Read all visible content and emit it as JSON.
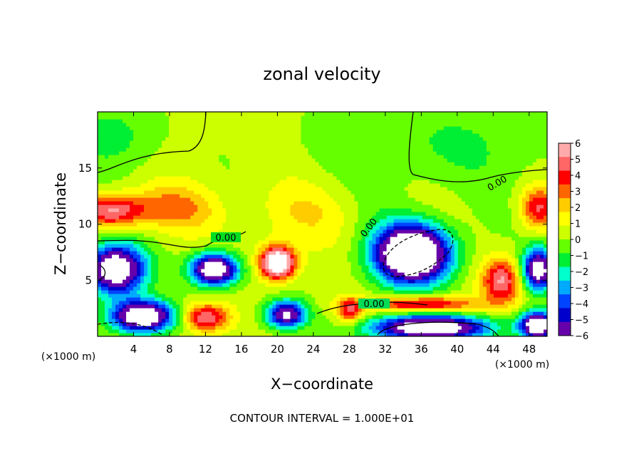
{
  "chart_data": {
    "type": "heatmap",
    "title": "zonal velocity",
    "xlabel": "X−coordinate",
    "ylabel": "Z−coordinate",
    "x_unit": "(×1000 m)",
    "y_unit": "(×1000 m)",
    "note": "CONTOUR INTERVAL = 1.000E+01",
    "xlim": [
      0,
      50
    ],
    "ylim": [
      0,
      20
    ],
    "x_ticks": [
      4,
      8,
      12,
      16,
      20,
      24,
      28,
      32,
      36,
      40,
      44,
      48
    ],
    "y_ticks": [
      5,
      10,
      15
    ],
    "colorbar": {
      "ticks": [
        "6",
        "5",
        "4",
        "3",
        "2",
        "1",
        "0",
        "−1",
        "−2",
        "−3",
        "−4",
        "−5",
        "−6"
      ],
      "colors": [
        "#ffaaaa",
        "#ff6666",
        "#ff0000",
        "#ff6600",
        "#ffcc00",
        "#ffff00",
        "#ccff00",
        "#66ff00",
        "#00ee33",
        "#00ffcc",
        "#00aaff",
        "#0044ff",
        "#0000cc",
        "#6600aa"
      ]
    },
    "contour_labels": [
      "0.00",
      "0.00",
      "0.00",
      "0.00"
    ],
    "background_value": 0.3,
    "features": [
      {
        "x": 2,
        "z": 6.0,
        "value": -9,
        "sx": 3.2,
        "sz": 2.2
      },
      {
        "x": 1.5,
        "z": 11.2,
        "value": 5,
        "sx": 3.5,
        "sz": 1.4
      },
      {
        "x": 8,
        "z": 11.5,
        "value": 2.5,
        "sx": 5,
        "sz": 2
      },
      {
        "x": 13,
        "z": 6.0,
        "value": -9,
        "sx": 2.6,
        "sz": 1.4
      },
      {
        "x": 20,
        "z": 6.6,
        "value": 9,
        "sx": 1.9,
        "sz": 1.4
      },
      {
        "x": 21,
        "z": 2.0,
        "value": -7,
        "sx": 2.2,
        "sz": 1.2
      },
      {
        "x": 12,
        "z": 1.7,
        "value": 5,
        "sx": 2.5,
        "sz": 1.2
      },
      {
        "x": 5,
        "z": 1.8,
        "value": -9,
        "sx": 3.5,
        "sz": 1.4
      },
      {
        "x": 28,
        "z": 2.3,
        "value": 4,
        "sx": 1.4,
        "sz": 1.1
      },
      {
        "x": 35,
        "z": 7.4,
        "value": -11,
        "sx": 4.2,
        "sz": 2.6
      },
      {
        "x": 37,
        "z": 0.8,
        "value": -9,
        "sx": 6.5,
        "sz": 1.1
      },
      {
        "x": 36,
        "z": 2.9,
        "value": 5,
        "sx": 6,
        "sz": 0.7
      },
      {
        "x": 45,
        "z": 5.0,
        "value": 5,
        "sx": 2.2,
        "sz": 2
      },
      {
        "x": 49,
        "z": 6.0,
        "value": -8,
        "sx": 1.8,
        "sz": 1.8
      },
      {
        "x": 49,
        "z": 1.0,
        "value": -9,
        "sx": 2,
        "sz": 1.2
      },
      {
        "x": 49,
        "z": 11.5,
        "value": 4,
        "sx": 2,
        "sz": 1.8
      },
      {
        "x": 38,
        "z": 17,
        "value": -1.2,
        "sx": 14,
        "sz": 4
      },
      {
        "x": 2,
        "z": 18,
        "value": -1.5,
        "sx": 5,
        "sz": 3
      },
      {
        "x": 22,
        "z": 11,
        "value": 1.2,
        "sx": 6,
        "sz": 3
      }
    ]
  }
}
